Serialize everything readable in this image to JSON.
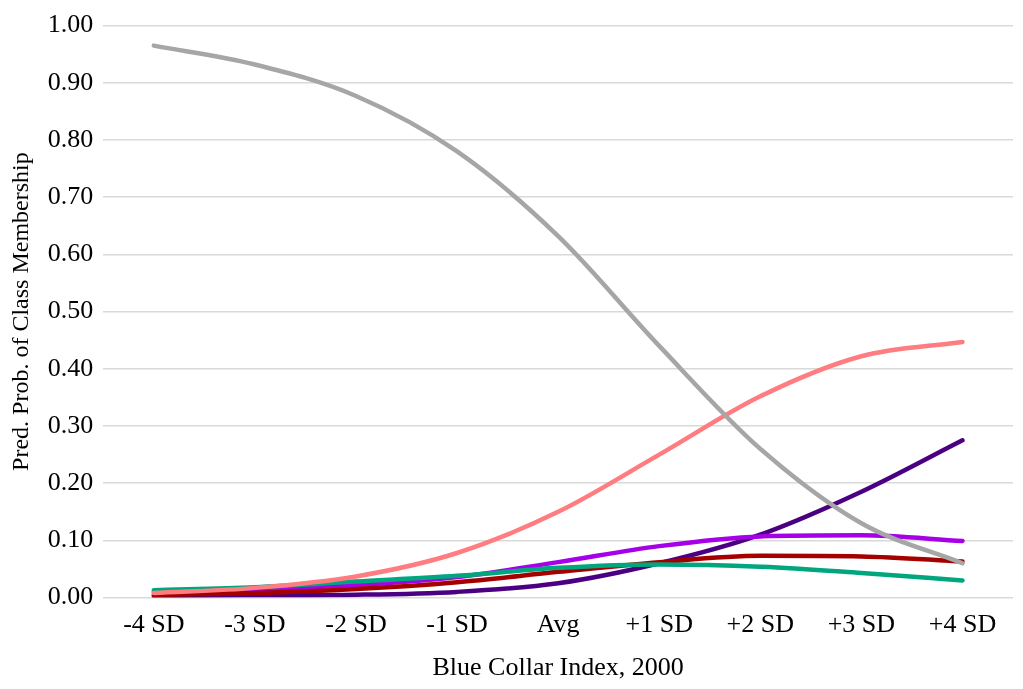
{
  "chart_data": {
    "type": "line",
    "xlabel": "Blue Collar Index, 2000",
    "ylabel": "Pred. Prob. of Class Membership",
    "categories": [
      "-4 SD",
      "-3 SD",
      "-2 SD",
      "-1 SD",
      "Avg",
      "+1 SD",
      "+2 SD",
      "+3 SD",
      "+4 SD"
    ],
    "series": [
      {
        "color": "#a6a6a6",
        "values": [
          0.965,
          0.932,
          0.877,
          0.78,
          0.632,
          0.44,
          0.26,
          0.13,
          0.06
        ]
      },
      {
        "color": "#ff7c80",
        "values": [
          0.008,
          0.017,
          0.037,
          0.078,
          0.15,
          0.25,
          0.352,
          0.422,
          0.447
        ]
      },
      {
        "color": "#00a67e",
        "values": [
          0.013,
          0.018,
          0.028,
          0.038,
          0.052,
          0.058,
          0.054,
          0.043,
          0.03
        ]
      },
      {
        "color": "#a50000",
        "values": [
          0.005,
          0.008,
          0.015,
          0.027,
          0.045,
          0.062,
          0.073,
          0.072,
          0.063
        ]
      },
      {
        "color": "#a600e8",
        "values": [
          0.01,
          0.014,
          0.022,
          0.036,
          0.062,
          0.09,
          0.107,
          0.109,
          0.099
        ]
      },
      {
        "color": "#4b0082",
        "values": [
          0.003,
          0.004,
          0.005,
          0.01,
          0.025,
          0.06,
          0.11,
          0.185,
          0.275
        ]
      }
    ],
    "ylim": [
      0,
      1
    ],
    "yticks": [
      {
        "value": 0,
        "label": "0.00"
      },
      {
        "value": 0.1,
        "label": "0.10"
      },
      {
        "value": 0.2,
        "label": "0.20"
      },
      {
        "value": 0.3,
        "label": "0.30"
      },
      {
        "value": 0.4,
        "label": "0.40"
      },
      {
        "value": 0.5,
        "label": "0.50"
      },
      {
        "value": 0.6,
        "label": "0.60"
      },
      {
        "value": 0.7,
        "label": "0.70"
      },
      {
        "value": 0.8,
        "label": "0.80"
      },
      {
        "value": 0.9,
        "label": "0.90"
      },
      {
        "value": 1,
        "label": "1.00"
      }
    ],
    "grid": "y",
    "legend": false,
    "marker": "none",
    "line_style": "solid"
  }
}
